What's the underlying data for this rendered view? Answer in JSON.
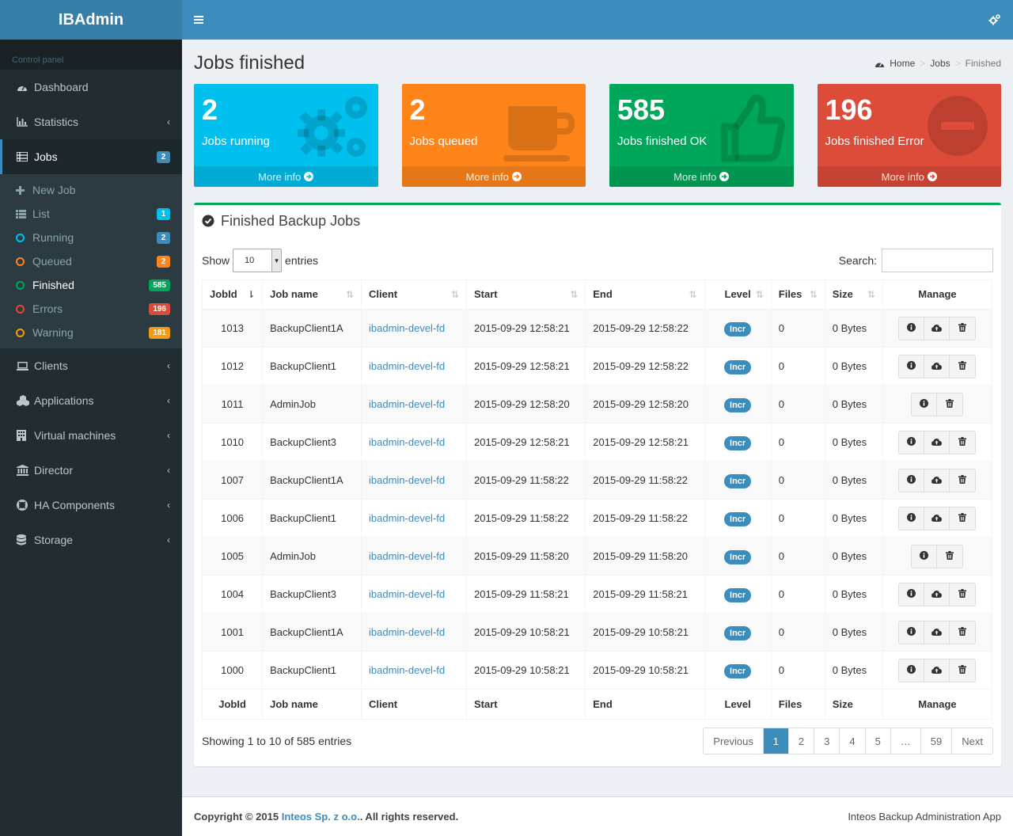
{
  "app": {
    "logo": "IBAdmin",
    "sidebar_header": "Control panel"
  },
  "sidebar": {
    "items": [
      {
        "label": "Dashboard",
        "icon": "dashboard-icon",
        "has_chevron": false
      },
      {
        "label": "Statistics",
        "icon": "bar-chart-icon",
        "has_chevron": true
      },
      {
        "label": "Jobs",
        "icon": "list-icon",
        "badge": "2",
        "active": true
      },
      {
        "label": "Clients",
        "icon": "laptop-icon",
        "has_chevron": true
      },
      {
        "label": "Applications",
        "icon": "cubes-icon",
        "has_chevron": true
      },
      {
        "label": "Virtual machines",
        "icon": "building-icon",
        "has_chevron": true
      },
      {
        "label": "Director",
        "icon": "bank-icon",
        "has_chevron": true
      },
      {
        "label": "HA Components",
        "icon": "life-ring-icon",
        "has_chevron": true
      },
      {
        "label": "Storage",
        "icon": "database-icon",
        "has_chevron": true
      }
    ],
    "jobs_sub": [
      {
        "label": "New Job"
      },
      {
        "label": "List",
        "badge": "1",
        "badge_color": "#00c0ef"
      },
      {
        "label": "Running",
        "badge": "2",
        "badge_color": "#3c8dbc",
        "ring_color": "#00c0ef"
      },
      {
        "label": "Queued",
        "badge": "2",
        "badge_color": "#ff851b",
        "ring_color": "#ff851b"
      },
      {
        "label": "Finished",
        "badge": "585",
        "badge_color": "#00a65a",
        "ring_color": "#00a65a",
        "active": true
      },
      {
        "label": "Errors",
        "badge": "196",
        "badge_color": "#dd4b39",
        "ring_color": "#dd4b39"
      },
      {
        "label": "Warning",
        "badge": "181",
        "badge_color": "#f39c12",
        "ring_color": "#f39c12"
      }
    ]
  },
  "header": {
    "menu_icon": "hamburger-icon",
    "settings_icon": "gears-icon"
  },
  "page": {
    "title": "Jobs finished",
    "breadcrumb": {
      "home": "Home",
      "jobs": "Jobs",
      "current": "Finished"
    }
  },
  "stats": [
    {
      "number": "2",
      "label": "Jobs running",
      "more": "More info",
      "color": "#00c0ef",
      "icon": "gears-icon"
    },
    {
      "number": "2",
      "label": "Jobs queued",
      "more": "More info",
      "color": "#ff851b",
      "icon": "coffee-icon"
    },
    {
      "number": "585",
      "label": "Jobs finished OK",
      "more": "More info",
      "color": "#00a65a",
      "icon": "thumbs-up-icon"
    },
    {
      "number": "196",
      "label": "Jobs finished Error",
      "more": "More info",
      "color": "#dd4b39",
      "icon": "minus-circle-icon"
    }
  ],
  "table_box": {
    "title": "Finished Backup Jobs",
    "show_label": "Show",
    "page_size": "10",
    "entries_label": "entries",
    "search_label": "Search:",
    "columns": [
      "JobId",
      "Job name",
      "Client",
      "Start",
      "End",
      "Level",
      "Files",
      "Size",
      "Manage"
    ],
    "rows": [
      {
        "id": "1013",
        "name": "BackupClient1A",
        "client": "ibadmin-devel-fd",
        "start": "2015-09-29 12:58:21",
        "end": "2015-09-29 12:58:22",
        "level": "Incr",
        "files": "0",
        "size": "0 Bytes",
        "restore": true
      },
      {
        "id": "1012",
        "name": "BackupClient1",
        "client": "ibadmin-devel-fd",
        "start": "2015-09-29 12:58:21",
        "end": "2015-09-29 12:58:22",
        "level": "Incr",
        "files": "0",
        "size": "0 Bytes",
        "restore": true
      },
      {
        "id": "1011",
        "name": "AdminJob",
        "client": "ibadmin-devel-fd",
        "start": "2015-09-29 12:58:20",
        "end": "2015-09-29 12:58:20",
        "level": "Incr",
        "files": "0",
        "size": "0 Bytes",
        "restore": false
      },
      {
        "id": "1010",
        "name": "BackupClient3",
        "client": "ibadmin-devel-fd",
        "start": "2015-09-29 12:58:21",
        "end": "2015-09-29 12:58:21",
        "level": "Incr",
        "files": "0",
        "size": "0 Bytes",
        "restore": true
      },
      {
        "id": "1007",
        "name": "BackupClient1A",
        "client": "ibadmin-devel-fd",
        "start": "2015-09-29 11:58:22",
        "end": "2015-09-29 11:58:22",
        "level": "Incr",
        "files": "0",
        "size": "0 Bytes",
        "restore": true
      },
      {
        "id": "1006",
        "name": "BackupClient1",
        "client": "ibadmin-devel-fd",
        "start": "2015-09-29 11:58:22",
        "end": "2015-09-29 11:58:22",
        "level": "Incr",
        "files": "0",
        "size": "0 Bytes",
        "restore": true
      },
      {
        "id": "1005",
        "name": "AdminJob",
        "client": "ibadmin-devel-fd",
        "start": "2015-09-29 11:58:20",
        "end": "2015-09-29 11:58:20",
        "level": "Incr",
        "files": "0",
        "size": "0 Bytes",
        "restore": false
      },
      {
        "id": "1004",
        "name": "BackupClient3",
        "client": "ibadmin-devel-fd",
        "start": "2015-09-29 11:58:21",
        "end": "2015-09-29 11:58:21",
        "level": "Incr",
        "files": "0",
        "size": "0 Bytes",
        "restore": true
      },
      {
        "id": "1001",
        "name": "BackupClient1A",
        "client": "ibadmin-devel-fd",
        "start": "2015-09-29 10:58:21",
        "end": "2015-09-29 10:58:21",
        "level": "Incr",
        "files": "0",
        "size": "0 Bytes",
        "restore": true
      },
      {
        "id": "1000",
        "name": "BackupClient1",
        "client": "ibadmin-devel-fd",
        "start": "2015-09-29 10:58:21",
        "end": "2015-09-29 10:58:21",
        "level": "Incr",
        "files": "0",
        "size": "0 Bytes",
        "restore": true
      }
    ],
    "info": "Showing 1 to 10 of 585 entries",
    "pagination": {
      "previous": "Previous",
      "pages": [
        "1",
        "2",
        "3",
        "4",
        "5",
        "…",
        "59"
      ],
      "current": "1",
      "next": "Next"
    }
  },
  "footer": {
    "copyright_prefix": "Copyright © 2015",
    "company": "Inteos Sp. z o.o.",
    "rights": ". All rights reserved.",
    "app_name": "Inteos Backup Administration App"
  }
}
